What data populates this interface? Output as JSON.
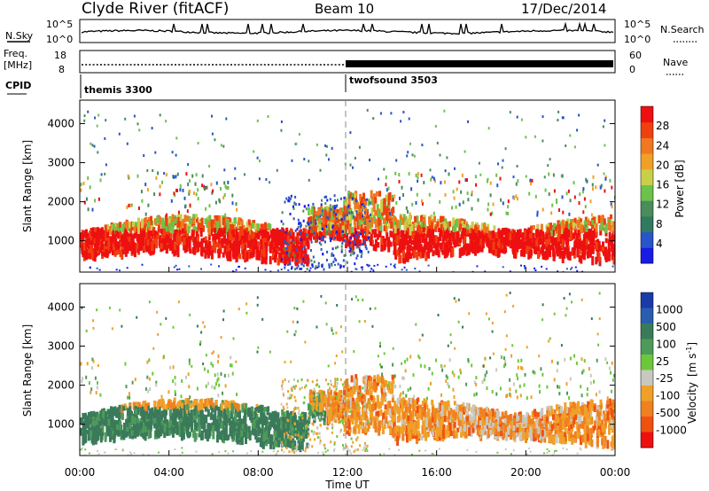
{
  "header": {
    "station": "Clyde River (fitACF)",
    "beam": "Beam 10",
    "date": "17/Dec/2014"
  },
  "top_panels": {
    "nsky_label": "N.Sky",
    "nsky_ticks": [
      "10^5",
      "10^0"
    ],
    "nsearch_label": "N.Search",
    "freq_label_line1": "Freq.",
    "freq_label_line2": "[MHz]",
    "freq_ticks": [
      "18",
      "8"
    ],
    "nave_label": "Nave",
    "nave_ticks": [
      "60",
      "0"
    ],
    "cpid_label": "CPID",
    "cpid_segments": [
      {
        "name": "themis 3300",
        "start_hour": 0
      },
      {
        "name": "twofsound 3503",
        "start_hour": 12
      }
    ]
  },
  "chart_data": [
    {
      "type": "heatmap",
      "name": "power",
      "ylabel": "Slant Range [km]",
      "yticks": [
        1000,
        2000,
        3000,
        4000
      ],
      "ylim": [
        200,
        4600
      ],
      "xlim": [
        0,
        24
      ],
      "colorbar": {
        "label": "Power [dB]",
        "ticks": [
          "4",
          "8",
          "12",
          "16",
          "20",
          "24",
          "28"
        ],
        "colors": [
          "#1a1ae6",
          "#2a55c8",
          "#2f7a60",
          "#4a8c5a",
          "#6cc24a",
          "#c8d048",
          "#f0a028",
          "#f07820",
          "#f04010",
          "#ee1010"
        ]
      }
    },
    {
      "type": "heatmap",
      "name": "velocity",
      "ylabel": "Slant Range [km]",
      "yticks": [
        1000,
        2000,
        3000,
        4000
      ],
      "ylim": [
        200,
        4600
      ],
      "xlim": [
        0,
        24
      ],
      "colorbar": {
        "label": "Velocity",
        "unit": "[m s",
        "unit_exp": "-1",
        "unit_close": "]",
        "ticks": [
          "1000",
          "500",
          "100",
          "25",
          "-25",
          "-100",
          "-500",
          "-1000"
        ],
        "colors": [
          "#1a3aa8",
          "#2a5cb0",
          "#3a7a5a",
          "#4e9a5a",
          "#6cc83a",
          "#c8c8c0",
          "#f0a028",
          "#f08020",
          "#f05010",
          "#ee1010"
        ]
      }
    }
  ],
  "x_axis": {
    "ticks": [
      "00:00",
      "04:00",
      "08:00",
      "12:00",
      "16:00",
      "20:00",
      "00:00"
    ],
    "label": "Time UT"
  }
}
